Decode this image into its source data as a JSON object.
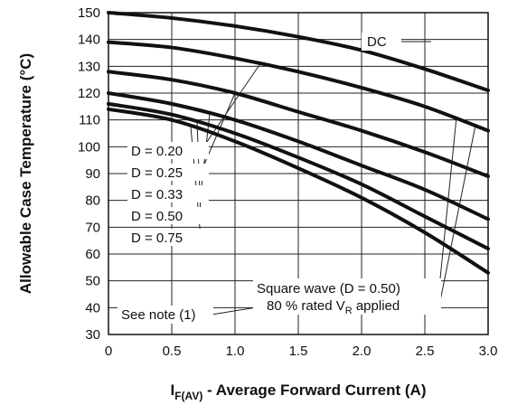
{
  "chart_data": {
    "type": "line",
    "title": "",
    "xlabel": {
      "symbol": "I",
      "subscript": "F(AV)",
      "text": " - Average Forward Current (A)"
    },
    "ylabel": "Allowable Case Temperature (°C)",
    "xlim": [
      0,
      3.0
    ],
    "ylim": [
      30,
      150
    ],
    "x_ticks": [
      {
        "value": 0,
        "label": "0"
      },
      {
        "value": 0.5,
        "label": "0.5"
      },
      {
        "value": 1.0,
        "label": "1.0"
      },
      {
        "value": 1.5,
        "label": "1.5"
      },
      {
        "value": 2.0,
        "label": "2.0"
      },
      {
        "value": 2.5,
        "label": "2.5"
      },
      {
        "value": 3.0,
        "label": "3.0"
      }
    ],
    "y_ticks": [
      {
        "value": 30,
        "label": "30"
      },
      {
        "value": 40,
        "label": "40"
      },
      {
        "value": 50,
        "label": "50"
      },
      {
        "value": 60,
        "label": "60"
      },
      {
        "value": 70,
        "label": "70"
      },
      {
        "value": 80,
        "label": "80"
      },
      {
        "value": 90,
        "label": "90"
      },
      {
        "value": 100,
        "label": "100"
      },
      {
        "value": 110,
        "label": "110"
      },
      {
        "value": 120,
        "label": "120"
      },
      {
        "value": 130,
        "label": "130"
      },
      {
        "value": 140,
        "label": "140"
      },
      {
        "value": 150,
        "label": "150"
      }
    ],
    "grid": true,
    "series": [
      {
        "name": "DC",
        "x": [
          0,
          0.5,
          1.0,
          1.5,
          2.0,
          2.5,
          3.0
        ],
        "y": [
          150,
          148,
          145,
          141,
          136,
          129,
          121
        ]
      },
      {
        "name": "D = 0.20",
        "x": [
          0,
          0.5,
          1.0,
          1.5,
          2.0,
          2.5,
          3.0
        ],
        "y": [
          139,
          137,
          133,
          128,
          122,
          115,
          106
        ]
      },
      {
        "name": "D = 0.25",
        "x": [
          0,
          0.5,
          1.0,
          1.5,
          2.0,
          2.5,
          3.0
        ],
        "y": [
          128,
          125,
          120,
          113,
          106,
          98,
          89
        ]
      },
      {
        "name": "D = 0.33",
        "x": [
          0,
          0.5,
          1.0,
          1.5,
          2.0,
          2.5,
          3.0
        ],
        "y": [
          120,
          116,
          110,
          102,
          93,
          84,
          73
        ]
      },
      {
        "name": "D = 0.50",
        "x": [
          0,
          0.5,
          1.0,
          1.5,
          2.0,
          2.5,
          3.0
        ],
        "y": [
          116,
          112,
          105,
          96,
          86,
          74,
          62
        ]
      },
      {
        "name": "D = 0.75",
        "x": [
          0,
          0.5,
          1.0,
          1.5,
          2.0,
          2.5,
          3.0
        ],
        "y": [
          114,
          110,
          102,
          92,
          81,
          68,
          53
        ]
      }
    ],
    "annotations": {
      "dc_label": "DC",
      "duty_labels": [
        "D = 0.20",
        "D = 0.25",
        "D = 0.33",
        "D = 0.50",
        "D = 0.75"
      ],
      "square_wave": "Square wave (D = 0.50)",
      "rated_prefix": "80 % rated V",
      "rated_sub": "R",
      "rated_suffix": " applied",
      "see_note": "See note (1)"
    }
  }
}
